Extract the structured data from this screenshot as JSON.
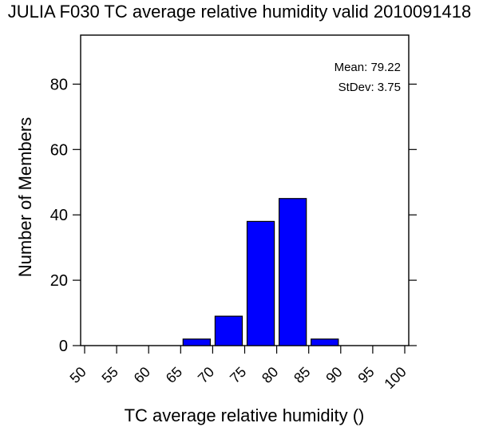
{
  "chart_data": {
    "type": "bar",
    "title": "JULIA F030 TC average relative humidity valid 2010091418",
    "xlabel": "TC average relative humidity ()",
    "ylabel": "Number of Members",
    "x_ticks": [
      50,
      55,
      60,
      65,
      70,
      75,
      80,
      85,
      90,
      95,
      100
    ],
    "y_ticks": [
      0,
      20,
      40,
      60,
      80
    ],
    "xlim": [
      50,
      100
    ],
    "ylim": [
      0,
      95
    ],
    "bins": [
      {
        "start": 65,
        "end": 70,
        "value": 2
      },
      {
        "start": 70,
        "end": 75,
        "value": 9
      },
      {
        "start": 75,
        "end": 80,
        "value": 38
      },
      {
        "start": 80,
        "end": 85,
        "value": 45
      },
      {
        "start": 85,
        "end": 90,
        "value": 2
      }
    ],
    "annotations": {
      "mean": "Mean: 79.22",
      "stdev": "StDev: 3.75"
    },
    "bar_color": "#0000FF",
    "grid": false
  }
}
